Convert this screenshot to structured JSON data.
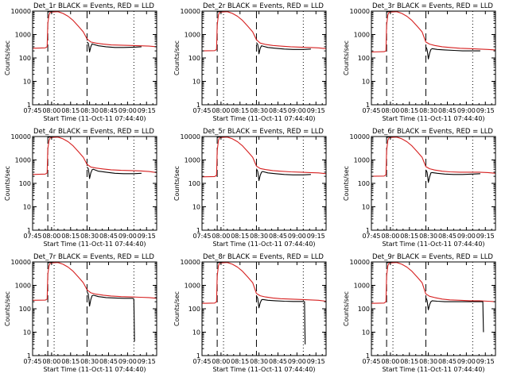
{
  "figure": {
    "xlabel": "Start Time (11-Oct-11 07:44:40)",
    "ylabel": "Counts/sec",
    "x_ticks": [
      {
        "t": 0,
        "label": "07:45"
      },
      {
        "t": 15,
        "label": "08:00"
      },
      {
        "t": 30,
        "label": "08:15"
      },
      {
        "t": 45,
        "label": "08:30"
      },
      {
        "t": 60,
        "label": "08:45"
      },
      {
        "t": 75,
        "label": "09:00"
      },
      {
        "t": 90,
        "label": "09:15"
      }
    ],
    "y_ticks": [
      {
        "v": 1,
        "label": "1"
      },
      {
        "v": 10,
        "label": "10"
      },
      {
        "v": 100,
        "label": "100"
      },
      {
        "v": 1000,
        "label": "1000"
      },
      {
        "v": 10000,
        "label": "10000"
      }
    ]
  },
  "chart_data": [
    {
      "type": "line",
      "title": "Det_1r BLACK = Events, RED = LLD",
      "xlim": [
        0,
        98
      ],
      "ylim": [
        1,
        10000
      ],
      "yscale": "log",
      "dashed_lines": [
        12,
        43
      ],
      "dotted_lines": [
        17,
        80
      ],
      "series": [
        {
          "name": "Events",
          "color": "#000000",
          "x": [
            0,
            11.5,
            12,
            13,
            14,
            15,
            16,
            17,
            23,
            40,
            43,
            44,
            44.5,
            45,
            46,
            47,
            48,
            52,
            58,
            65,
            72,
            80,
            86
          ],
          "y": [
            null,
            null,
            9000,
            9500,
            9800,
            9800,
            9900,
            9900,
            null,
            null,
            480,
            420,
            300,
            180,
            300,
            400,
            380,
            330,
            300,
            280,
            280,
            290,
            300
          ]
        },
        {
          "name": "LLD",
          "color": "#d62020",
          "x": [
            0,
            10,
            11.5,
            12,
            13,
            14,
            20,
            24,
            28,
            32,
            36,
            40,
            43,
            46,
            50,
            56,
            62,
            70,
            78,
            85,
            92,
            98
          ],
          "y": [
            260,
            270,
            300,
            3000,
            7000,
            9000,
            9500,
            8000,
            6000,
            4000,
            2300,
            1300,
            650,
            480,
            430,
            390,
            360,
            350,
            340,
            330,
            320,
            300
          ]
        }
      ]
    },
    {
      "type": "line",
      "title": "Det_2r BLACK = Events, RED = LLD",
      "xlim": [
        0,
        98
      ],
      "ylim": [
        1,
        10000
      ],
      "yscale": "log",
      "dashed_lines": [
        12,
        43
      ],
      "dotted_lines": [
        17,
        80
      ],
      "series": [
        {
          "name": "Events",
          "color": "#000000",
          "x": [
            12,
            13,
            14,
            15,
            16,
            17,
            23,
            40,
            43,
            44,
            44.5,
            45,
            46,
            47,
            48,
            52,
            58,
            65,
            72,
            80,
            86
          ],
          "y": [
            9000,
            9500,
            9800,
            9800,
            9900,
            9900,
            null,
            null,
            450,
            380,
            260,
            150,
            260,
            330,
            320,
            280,
            260,
            240,
            230,
            230,
            240
          ]
        },
        {
          "name": "LLD",
          "color": "#d62020",
          "x": [
            0,
            10,
            11.5,
            12,
            13,
            14,
            20,
            24,
            28,
            32,
            36,
            40,
            43,
            46,
            50,
            56,
            62,
            70,
            78,
            85,
            92,
            98
          ],
          "y": [
            200,
            205,
            230,
            2500,
            7000,
            9000,
            9500,
            8000,
            6000,
            4000,
            2300,
            1300,
            600,
            430,
            380,
            340,
            320,
            300,
            290,
            280,
            270,
            250
          ]
        }
      ]
    },
    {
      "type": "line",
      "title": "Det_3r BLACK = Events, RED = LLD",
      "xlim": [
        0,
        98
      ],
      "ylim": [
        1,
        10000
      ],
      "yscale": "log",
      "dashed_lines": [
        12,
        43
      ],
      "dotted_lines": [
        17,
        80
      ],
      "series": [
        {
          "name": "Events",
          "color": "#000000",
          "x": [
            12,
            13,
            14,
            15,
            16,
            17,
            23,
            40,
            43,
            44,
            44.5,
            45,
            46,
            47,
            48,
            52,
            58,
            65,
            72,
            80,
            86
          ],
          "y": [
            9000,
            9500,
            9800,
            9800,
            9900,
            9900,
            null,
            null,
            300,
            230,
            150,
            90,
            160,
            230,
            250,
            230,
            220,
            210,
            200,
            200,
            200
          ]
        },
        {
          "name": "LLD",
          "color": "#d62020",
          "x": [
            0,
            10,
            11.5,
            12,
            13,
            14,
            20,
            24,
            28,
            32,
            36,
            40,
            43,
            46,
            50,
            56,
            62,
            70,
            78,
            85,
            92,
            98
          ],
          "y": [
            180,
            185,
            200,
            2500,
            7000,
            9000,
            9500,
            8000,
            6000,
            4000,
            2300,
            1300,
            480,
            390,
            340,
            300,
            280,
            260,
            250,
            240,
            230,
            220
          ]
        }
      ]
    },
    {
      "type": "line",
      "title": "Det_4r BLACK = Events, RED = LLD",
      "xlim": [
        0,
        98
      ],
      "ylim": [
        1,
        10000
      ],
      "yscale": "log",
      "dashed_lines": [
        12,
        43
      ],
      "dotted_lines": [
        17,
        80
      ],
      "series": [
        {
          "name": "Events",
          "color": "#000000",
          "x": [
            12,
            13,
            14,
            15,
            16,
            17,
            23,
            40,
            43,
            44,
            44.5,
            45,
            46,
            47,
            48,
            52,
            58,
            65,
            72,
            80,
            86
          ],
          "y": [
            9000,
            9500,
            9800,
            9800,
            9900,
            9900,
            null,
            null,
            500,
            420,
            280,
            160,
            280,
            380,
            400,
            330,
            300,
            270,
            260,
            260,
            270
          ]
        },
        {
          "name": "LLD",
          "color": "#d62020",
          "x": [
            0,
            10,
            11.5,
            12,
            13,
            14,
            20,
            24,
            28,
            32,
            36,
            40,
            43,
            46,
            50,
            56,
            62,
            70,
            78,
            85,
            92,
            98
          ],
          "y": [
            240,
            250,
            280,
            3000,
            7000,
            9000,
            9500,
            8000,
            6000,
            4000,
            2300,
            1300,
            650,
            500,
            450,
            410,
            380,
            360,
            350,
            340,
            320,
            290
          ]
        }
      ]
    },
    {
      "type": "line",
      "title": "Det_5r BLACK = Events, RED = LLD",
      "xlim": [
        0,
        98
      ],
      "ylim": [
        1,
        10000
      ],
      "yscale": "log",
      "dashed_lines": [
        12,
        43
      ],
      "dotted_lines": [
        17,
        80
      ],
      "series": [
        {
          "name": "Events",
          "color": "#000000",
          "x": [
            12,
            13,
            14,
            15,
            16,
            17,
            23,
            40,
            43,
            44,
            44.5,
            45,
            46,
            47,
            48,
            52,
            58,
            65,
            72,
            80,
            86
          ],
          "y": [
            9000,
            9500,
            9800,
            9800,
            9900,
            9900,
            null,
            null,
            420,
            330,
            220,
            130,
            220,
            300,
            320,
            280,
            260,
            240,
            230,
            230,
            240
          ]
        },
        {
          "name": "LLD",
          "color": "#d62020",
          "x": [
            0,
            10,
            11.5,
            12,
            13,
            14,
            20,
            24,
            28,
            32,
            36,
            40,
            43,
            46,
            50,
            56,
            62,
            70,
            78,
            85,
            92,
            98
          ],
          "y": [
            190,
            195,
            220,
            2500,
            7000,
            9000,
            9500,
            8000,
            6000,
            4000,
            2300,
            1300,
            550,
            430,
            390,
            350,
            330,
            310,
            300,
            290,
            280,
            260
          ]
        }
      ]
    },
    {
      "type": "line",
      "title": "Det_6r BLACK = Events, RED = LLD",
      "xlim": [
        0,
        98
      ],
      "ylim": [
        1,
        10000
      ],
      "yscale": "log",
      "dashed_lines": [
        12,
        43
      ],
      "dotted_lines": [
        17,
        80
      ],
      "series": [
        {
          "name": "Events",
          "color": "#000000",
          "x": [
            12,
            13,
            14,
            15,
            16,
            17,
            23,
            40,
            43,
            44,
            44.5,
            45,
            46,
            47,
            48,
            52,
            58,
            65,
            72,
            80,
            86
          ],
          "y": [
            9000,
            9500,
            9800,
            9800,
            9900,
            9900,
            null,
            null,
            380,
            300,
            190,
            110,
            190,
            280,
            290,
            270,
            250,
            240,
            240,
            250,
            260
          ]
        },
        {
          "name": "LLD",
          "color": "#d62020",
          "x": [
            0,
            10,
            11.5,
            12,
            13,
            14,
            20,
            24,
            28,
            32,
            36,
            40,
            43,
            46,
            50,
            56,
            62,
            70,
            78,
            85,
            92,
            98
          ],
          "y": [
            200,
            205,
            230,
            2500,
            7000,
            9000,
            9500,
            8000,
            6000,
            4000,
            2300,
            1300,
            520,
            420,
            370,
            330,
            310,
            300,
            300,
            300,
            290,
            270
          ]
        }
      ]
    },
    {
      "type": "line",
      "title": "Det_7r BLACK = Events, RED = LLD",
      "xlim": [
        0,
        98
      ],
      "ylim": [
        1,
        10000
      ],
      "yscale": "log",
      "dashed_lines": [
        12,
        43
      ],
      "dotted_lines": [
        17,
        80
      ],
      "series": [
        {
          "name": "Events",
          "color": "#000000",
          "x": [
            12,
            13,
            14,
            15,
            16,
            17,
            23,
            40,
            43,
            44,
            44.5,
            45,
            46,
            47,
            48,
            52,
            58,
            65,
            72,
            79,
            80,
            80.2,
            80.5
          ],
          "y": [
            9000,
            9500,
            9800,
            9800,
            9900,
            9900,
            null,
            null,
            550,
            420,
            250,
            130,
            250,
            360,
            380,
            330,
            300,
            290,
            280,
            280,
            260,
            40,
            4
          ]
        },
        {
          "name": "LLD",
          "color": "#d62020",
          "x": [
            0,
            10,
            11.5,
            12,
            13,
            14,
            20,
            24,
            28,
            32,
            36,
            40,
            43,
            46,
            50,
            56,
            62,
            70,
            78,
            85,
            92,
            98
          ],
          "y": [
            230,
            235,
            260,
            3000,
            7000,
            9000,
            9500,
            8000,
            6000,
            4000,
            2300,
            1300,
            650,
            480,
            420,
            380,
            350,
            330,
            320,
            310,
            300,
            280
          ]
        }
      ]
    },
    {
      "type": "line",
      "title": "Det_8r BLACK = Events, RED = LLD",
      "xlim": [
        0,
        98
      ],
      "ylim": [
        1,
        10000
      ],
      "yscale": "log",
      "dashed_lines": [
        12,
        43
      ],
      "dotted_lines": [
        17,
        80
      ],
      "series": [
        {
          "name": "Events",
          "color": "#000000",
          "x": [
            12,
            13,
            14,
            15,
            16,
            17,
            23,
            40,
            43,
            44,
            44.5,
            45,
            46,
            47,
            48,
            52,
            58,
            65,
            72,
            79,
            81,
            81.2,
            81.5
          ],
          "y": [
            9000,
            9500,
            9800,
            9800,
            9900,
            9900,
            null,
            null,
            360,
            280,
            180,
            110,
            180,
            240,
            250,
            230,
            220,
            210,
            205,
            205,
            200,
            20,
            3
          ]
        },
        {
          "name": "LLD",
          "color": "#d62020",
          "x": [
            0,
            10,
            11.5,
            12,
            13,
            14,
            20,
            24,
            28,
            32,
            36,
            40,
            43,
            46,
            50,
            56,
            62,
            70,
            78,
            85,
            92,
            98
          ],
          "y": [
            170,
            175,
            200,
            2500,
            7000,
            9000,
            9500,
            8000,
            6000,
            4000,
            2300,
            1300,
            450,
            360,
            320,
            290,
            270,
            260,
            250,
            240,
            230,
            210
          ]
        }
      ]
    },
    {
      "type": "line",
      "title": "Det_9r BLACK = Events, RED = LLD",
      "xlim": [
        0,
        98
      ],
      "ylim": [
        1,
        10000
      ],
      "yscale": "log",
      "dashed_lines": [
        12,
        43
      ],
      "dotted_lines": [
        17,
        80
      ],
      "series": [
        {
          "name": "Events",
          "color": "#000000",
          "x": [
            12,
            13,
            14,
            15,
            16,
            17,
            23,
            40,
            43,
            44,
            44.5,
            45,
            46,
            47,
            48,
            52,
            58,
            65,
            72,
            80,
            88,
            88.2,
            88.5
          ],
          "y": [
            9000,
            9500,
            9800,
            9800,
            9900,
            9900,
            null,
            null,
            300,
            230,
            140,
            90,
            150,
            200,
            220,
            210,
            200,
            200,
            200,
            200,
            200,
            60,
            10
          ]
        },
        {
          "name": "LLD",
          "color": "#d62020",
          "x": [
            0,
            10,
            11.5,
            12,
            13,
            14,
            20,
            24,
            28,
            32,
            36,
            40,
            43,
            46,
            50,
            56,
            62,
            70,
            78,
            85,
            92,
            98
          ],
          "y": [
            170,
            175,
            200,
            2500,
            7000,
            9000,
            9500,
            8000,
            6000,
            4000,
            2300,
            1300,
            430,
            340,
            300,
            260,
            240,
            230,
            220,
            220,
            210,
            200
          ]
        }
      ]
    }
  ]
}
